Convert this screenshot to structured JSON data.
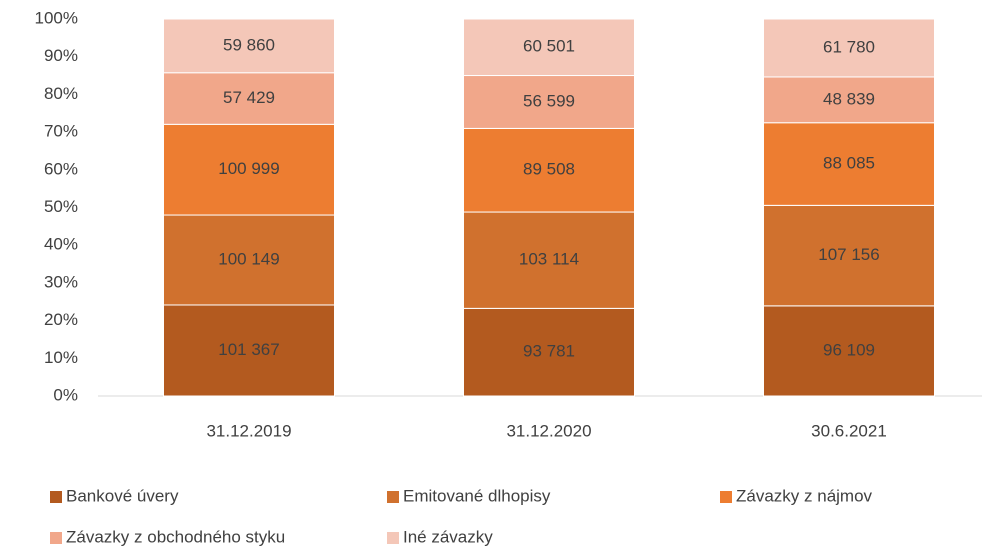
{
  "chart_data": {
    "type": "stacked_bar_100",
    "categories": [
      "31.12.2019",
      "31.12.2020",
      "30.6.2021"
    ],
    "series": [
      {
        "name": "Bankové úvery",
        "color": "#b35a1f",
        "values": [
          101367,
          93781,
          96109
        ],
        "value_labels": [
          "101 367",
          "93 781",
          "96 109"
        ]
      },
      {
        "name": "Emitované dlhopisy",
        "color": "#d0712e",
        "values": [
          100149,
          103114,
          107156
        ],
        "value_labels": [
          "100 149",
          "103 114",
          "107 156"
        ]
      },
      {
        "name": "Závazky z nájmov",
        "color": "#ed7d31",
        "values": [
          100999,
          89508,
          88085
        ],
        "value_labels": [
          "100 999",
          "89 508",
          "88 085"
        ]
      },
      {
        "name": "Závazky z obchodného styku",
        "color": "#f1a78a",
        "values": [
          57429,
          56599,
          48839
        ],
        "value_labels": [
          "57 429",
          "56 599",
          "48 839"
        ]
      },
      {
        "name": "Iné závazky",
        "color": "#f4c7b8",
        "values": [
          59860,
          60501,
          61780
        ],
        "value_labels": [
          "59 860",
          "60 501",
          "61 780"
        ]
      }
    ],
    "ylim": [
      0,
      100
    ],
    "yticks": [
      {
        "value": 0,
        "label": "0%"
      },
      {
        "value": 10,
        "label": "10%"
      },
      {
        "value": 20,
        "label": "20%"
      },
      {
        "value": 30,
        "label": "30%"
      },
      {
        "value": 40,
        "label": "40%"
      },
      {
        "value": 50,
        "label": "50%"
      },
      {
        "value": 60,
        "label": "60%"
      },
      {
        "value": 70,
        "label": "70%"
      },
      {
        "value": 80,
        "label": "80%"
      },
      {
        "value": 90,
        "label": "90%"
      },
      {
        "value": 100,
        "label": "100%"
      }
    ],
    "legend": "bottom"
  }
}
